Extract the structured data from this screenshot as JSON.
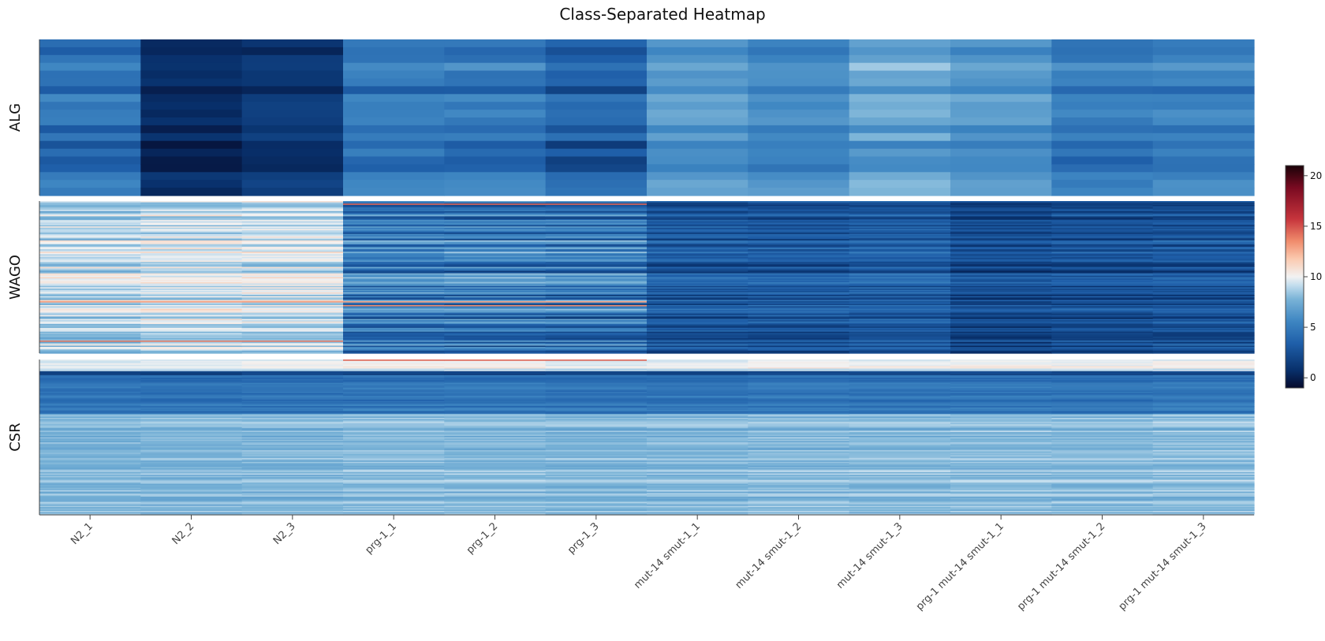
{
  "chart_data": {
    "type": "heatmap",
    "title": "Class-Separated Heatmap",
    "columns": [
      "N2_1",
      "N2_2",
      "N2_3",
      "prg-1_1",
      "prg-1_2",
      "prg-1_3",
      "mut-14 smut-1_1",
      "mut-14 smut-1_2",
      "mut-14 smut-1_3",
      "prg-1 mut-14 smut-1_1",
      "prg-1 mut-14 smut-1_2",
      "prg-1 mut-14 smut-1_3"
    ],
    "panels": [
      {
        "name": "ALG",
        "rows": 20,
        "column_mean": [
          4.0,
          0.3,
          1.0,
          4.5,
          4.3,
          3.0,
          6.2,
          5.5,
          6.7,
          6.0,
          4.5,
          4.9
        ],
        "column_spread": [
          1.8,
          0.8,
          1.0,
          1.3,
          1.6,
          2.0,
          1.2,
          1.1,
          1.5,
          1.3,
          1.3,
          1.2
        ],
        "row_noise": 0.5
      },
      {
        "name": "WAGO",
        "rows": 120,
        "column_mean": [
          9.0,
          9.3,
          9.3,
          5.0,
          5.0,
          4.8,
          3.0,
          3.0,
          3.2,
          2.3,
          2.5,
          2.7
        ],
        "column_spread": [
          1.8,
          1.6,
          1.6,
          3.0,
          3.2,
          3.3,
          1.7,
          1.7,
          1.6,
          1.6,
          1.6,
          1.7
        ],
        "row_noise": 0.6,
        "highlights": [
          {
            "row_fraction": 0.02,
            "value": 14.5,
            "columns": [
              3,
              4,
              5
            ]
          },
          {
            "row_fraction": 0.66,
            "value": 13.0,
            "columns": [
              0,
              1,
              2,
              3,
              4,
              5
            ]
          },
          {
            "row_fraction": 0.68,
            "value": 13.5,
            "columns": [
              3,
              4,
              5
            ]
          },
          {
            "row_fraction": 0.92,
            "value": 14.0,
            "columns": [
              0,
              1,
              2
            ]
          }
        ]
      },
      {
        "name": "CSR",
        "rows": 120,
        "column_mean": [
          7.2,
          7.2,
          7.3,
          7.5,
          7.4,
          7.2,
          7.3,
          7.6,
          7.5,
          7.6,
          7.5,
          7.7
        ],
        "column_spread": [
          0.8,
          0.8,
          0.8,
          0.9,
          0.9,
          0.9,
          0.9,
          0.9,
          0.9,
          0.9,
          0.9,
          0.9
        ],
        "row_noise": 0.4,
        "block_profile": [
          {
            "start": 0.0,
            "end": 0.07,
            "value": 9.8
          },
          {
            "start": 0.07,
            "end": 0.1,
            "value": 1.5
          },
          {
            "start": 0.1,
            "end": 0.35,
            "value": 4.5
          },
          {
            "start": 0.35,
            "end": 1.0,
            "value": 8.0
          }
        ],
        "highlights": [
          {
            "row_fraction": 0.0,
            "value": 14.5,
            "columns": [
              3,
              4,
              5
            ]
          }
        ]
      }
    ],
    "colorbar": {
      "min": -1,
      "max": 21,
      "ticks": [
        0,
        5,
        10,
        15,
        20
      ],
      "colorscale": [
        [
          0.0,
          "#050a2c"
        ],
        [
          0.08,
          "#08306b"
        ],
        [
          0.2,
          "#1f5fa9"
        ],
        [
          0.3,
          "#3e86c2"
        ],
        [
          0.4,
          "#7ab3d7"
        ],
        [
          0.46,
          "#c1dced"
        ],
        [
          0.5,
          "#f2f2f2"
        ],
        [
          0.58,
          "#fbcab0"
        ],
        [
          0.66,
          "#f08c6c"
        ],
        [
          0.76,
          "#c6343c"
        ],
        [
          0.9,
          "#7a0a21"
        ],
        [
          1.0,
          "#1a0208"
        ]
      ]
    },
    "grid": false,
    "legend": "right"
  }
}
